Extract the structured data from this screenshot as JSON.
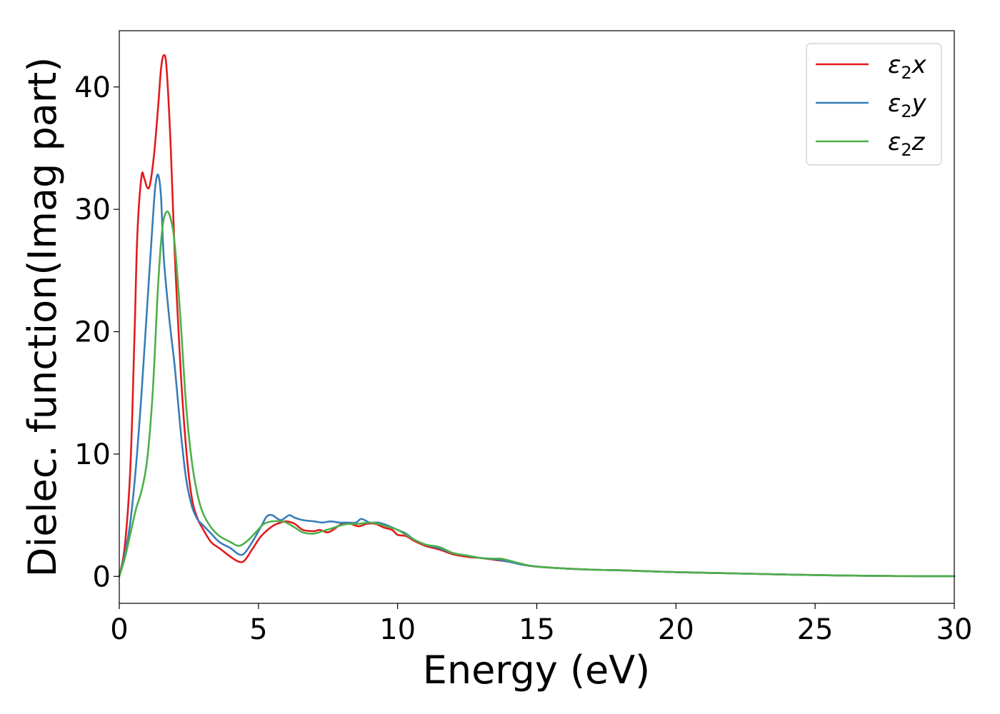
{
  "chart_data": {
    "type": "line",
    "xlabel": "Energy (eV)",
    "ylabel": "Dielec. function(Imag part)",
    "xlim": [
      0,
      30
    ],
    "ylim": [
      -2.2,
      44.6
    ],
    "xticks": [
      0,
      5,
      10,
      15,
      20,
      25,
      30
    ],
    "yticks": [
      0,
      10,
      20,
      30,
      40
    ],
    "grid": false,
    "legend_position": "top-right",
    "series": [
      {
        "name": "ε2x",
        "legend_base": "ε",
        "legend_sub": "2",
        "legend_suffix": "x",
        "color": "#e41a1c",
        "points": [
          [
            0,
            0
          ],
          [
            0.2,
            2.5
          ],
          [
            0.4,
            9
          ],
          [
            0.55,
            20
          ],
          [
            0.65,
            28
          ],
          [
            0.8,
            32.7
          ],
          [
            0.9,
            32.5
          ],
          [
            1.0,
            31.8
          ],
          [
            1.1,
            32.0
          ],
          [
            1.25,
            34.5
          ],
          [
            1.4,
            38.5
          ],
          [
            1.5,
            41.5
          ],
          [
            1.6,
            42.6
          ],
          [
            1.7,
            41.5
          ],
          [
            1.85,
            35
          ],
          [
            2.0,
            26
          ],
          [
            2.2,
            17
          ],
          [
            2.4,
            10.5
          ],
          [
            2.6,
            6.5
          ],
          [
            2.8,
            4.8
          ],
          [
            3.0,
            3.9
          ],
          [
            3.3,
            2.8
          ],
          [
            3.6,
            2.3
          ],
          [
            4.0,
            1.6
          ],
          [
            4.3,
            1.2
          ],
          [
            4.5,
            1.3
          ],
          [
            4.8,
            2.3
          ],
          [
            5.1,
            3.3
          ],
          [
            5.5,
            4.1
          ],
          [
            5.8,
            4.4
          ],
          [
            6.0,
            4.5
          ],
          [
            6.3,
            4.3
          ],
          [
            6.6,
            3.8
          ],
          [
            7.0,
            3.7
          ],
          [
            7.2,
            3.8
          ],
          [
            7.5,
            3.6
          ],
          [
            7.8,
            4.0
          ],
          [
            8.0,
            4.3
          ],
          [
            8.3,
            4.3
          ],
          [
            8.6,
            4.1
          ],
          [
            8.9,
            4.3
          ],
          [
            9.2,
            4.3
          ],
          [
            9.5,
            4.0
          ],
          [
            9.8,
            3.8
          ],
          [
            10.0,
            3.4
          ],
          [
            10.3,
            3.3
          ],
          [
            10.6,
            2.9
          ],
          [
            11.0,
            2.5
          ],
          [
            11.5,
            2.2
          ],
          [
            12.0,
            1.8
          ],
          [
            12.5,
            1.6
          ],
          [
            13.0,
            1.5
          ],
          [
            13.5,
            1.35
          ],
          [
            14.0,
            1.2
          ],
          [
            14.5,
            0.95
          ],
          [
            15.0,
            0.8
          ],
          [
            16.0,
            0.65
          ],
          [
            17.0,
            0.55
          ],
          [
            18.0,
            0.5
          ],
          [
            19.0,
            0.42
          ],
          [
            20.0,
            0.35
          ],
          [
            22.0,
            0.25
          ],
          [
            24.0,
            0.15
          ],
          [
            26.0,
            0.07
          ],
          [
            28.0,
            0.03
          ],
          [
            30.0,
            0.02
          ]
        ]
      },
      {
        "name": "ε2y",
        "legend_base": "ε",
        "legend_sub": "2",
        "legend_suffix": "y",
        "color": "#377eb8",
        "points": [
          [
            0,
            0
          ],
          [
            0.2,
            1.8
          ],
          [
            0.4,
            4.5
          ],
          [
            0.6,
            9
          ],
          [
            0.8,
            15
          ],
          [
            1.0,
            22
          ],
          [
            1.2,
            29
          ],
          [
            1.3,
            32
          ],
          [
            1.4,
            32.8
          ],
          [
            1.5,
            31
          ],
          [
            1.6,
            26
          ],
          [
            1.8,
            21
          ],
          [
            2.0,
            17
          ],
          [
            2.2,
            12
          ],
          [
            2.4,
            8
          ],
          [
            2.6,
            5.8
          ],
          [
            2.8,
            4.7
          ],
          [
            3.0,
            4.2
          ],
          [
            3.3,
            3.5
          ],
          [
            3.6,
            2.8
          ],
          [
            4.0,
            2.3
          ],
          [
            4.3,
            1.8
          ],
          [
            4.5,
            1.9
          ],
          [
            4.8,
            2.9
          ],
          [
            5.1,
            4.1
          ],
          [
            5.3,
            4.9
          ],
          [
            5.5,
            5.0
          ],
          [
            5.8,
            4.6
          ],
          [
            6.1,
            5.0
          ],
          [
            6.3,
            4.8
          ],
          [
            6.6,
            4.6
          ],
          [
            7.0,
            4.5
          ],
          [
            7.3,
            4.4
          ],
          [
            7.6,
            4.5
          ],
          [
            7.9,
            4.4
          ],
          [
            8.2,
            4.4
          ],
          [
            8.5,
            4.4
          ],
          [
            8.7,
            4.7
          ],
          [
            9.0,
            4.4
          ],
          [
            9.3,
            4.4
          ],
          [
            9.6,
            4.2
          ],
          [
            10.0,
            3.8
          ],
          [
            10.3,
            3.5
          ],
          [
            10.6,
            3.0
          ],
          [
            11.0,
            2.6
          ],
          [
            11.5,
            2.3
          ],
          [
            12.0,
            1.9
          ],
          [
            12.5,
            1.7
          ],
          [
            13.0,
            1.5
          ],
          [
            13.5,
            1.4
          ],
          [
            14.0,
            1.2
          ],
          [
            14.5,
            0.95
          ],
          [
            15.0,
            0.8
          ],
          [
            16.0,
            0.65
          ],
          [
            17.0,
            0.55
          ],
          [
            18.0,
            0.5
          ],
          [
            19.0,
            0.42
          ],
          [
            20.0,
            0.35
          ],
          [
            22.0,
            0.25
          ],
          [
            24.0,
            0.15
          ],
          [
            26.0,
            0.07
          ],
          [
            28.0,
            0.03
          ],
          [
            30.0,
            0.02
          ]
        ]
      },
      {
        "name": "ε2z",
        "legend_base": "ε",
        "legend_sub": "2",
        "legend_suffix": "z",
        "color": "#4daf4a",
        "points": [
          [
            0,
            0
          ],
          [
            0.2,
            1.5
          ],
          [
            0.4,
            3.5
          ],
          [
            0.6,
            5.5
          ],
          [
            0.8,
            7
          ],
          [
            1.0,
            9.5
          ],
          [
            1.2,
            15
          ],
          [
            1.4,
            24
          ],
          [
            1.55,
            28.5
          ],
          [
            1.7,
            29.8
          ],
          [
            1.85,
            29.2
          ],
          [
            2.0,
            27
          ],
          [
            2.2,
            21
          ],
          [
            2.4,
            14
          ],
          [
            2.6,
            9.5
          ],
          [
            2.8,
            6.8
          ],
          [
            3.0,
            5.2
          ],
          [
            3.3,
            4.0
          ],
          [
            3.6,
            3.3
          ],
          [
            4.0,
            2.8
          ],
          [
            4.3,
            2.5
          ],
          [
            4.6,
            2.9
          ],
          [
            4.9,
            3.6
          ],
          [
            5.2,
            4.3
          ],
          [
            5.5,
            4.5
          ],
          [
            5.8,
            4.5
          ],
          [
            6.0,
            4.4
          ],
          [
            6.3,
            4.0
          ],
          [
            6.6,
            3.6
          ],
          [
            7.0,
            3.5
          ],
          [
            7.3,
            3.7
          ],
          [
            7.6,
            3.9
          ],
          [
            8.0,
            4.2
          ],
          [
            8.3,
            4.3
          ],
          [
            8.6,
            4.3
          ],
          [
            9.0,
            4.4
          ],
          [
            9.3,
            4.3
          ],
          [
            9.6,
            4.1
          ],
          [
            10.0,
            3.8
          ],
          [
            10.3,
            3.4
          ],
          [
            10.6,
            3.0
          ],
          [
            11.0,
            2.6
          ],
          [
            11.5,
            2.4
          ],
          [
            12.0,
            1.9
          ],
          [
            12.5,
            1.7
          ],
          [
            13.0,
            1.5
          ],
          [
            13.4,
            1.45
          ],
          [
            13.7,
            1.45
          ],
          [
            14.0,
            1.3
          ],
          [
            14.5,
            1.0
          ],
          [
            15.0,
            0.8
          ],
          [
            16.0,
            0.65
          ],
          [
            17.0,
            0.55
          ],
          [
            18.0,
            0.5
          ],
          [
            19.0,
            0.42
          ],
          [
            20.0,
            0.35
          ],
          [
            22.0,
            0.25
          ],
          [
            24.0,
            0.15
          ],
          [
            26.0,
            0.07
          ],
          [
            28.0,
            0.03
          ],
          [
            30.0,
            0.02
          ]
        ]
      }
    ]
  }
}
